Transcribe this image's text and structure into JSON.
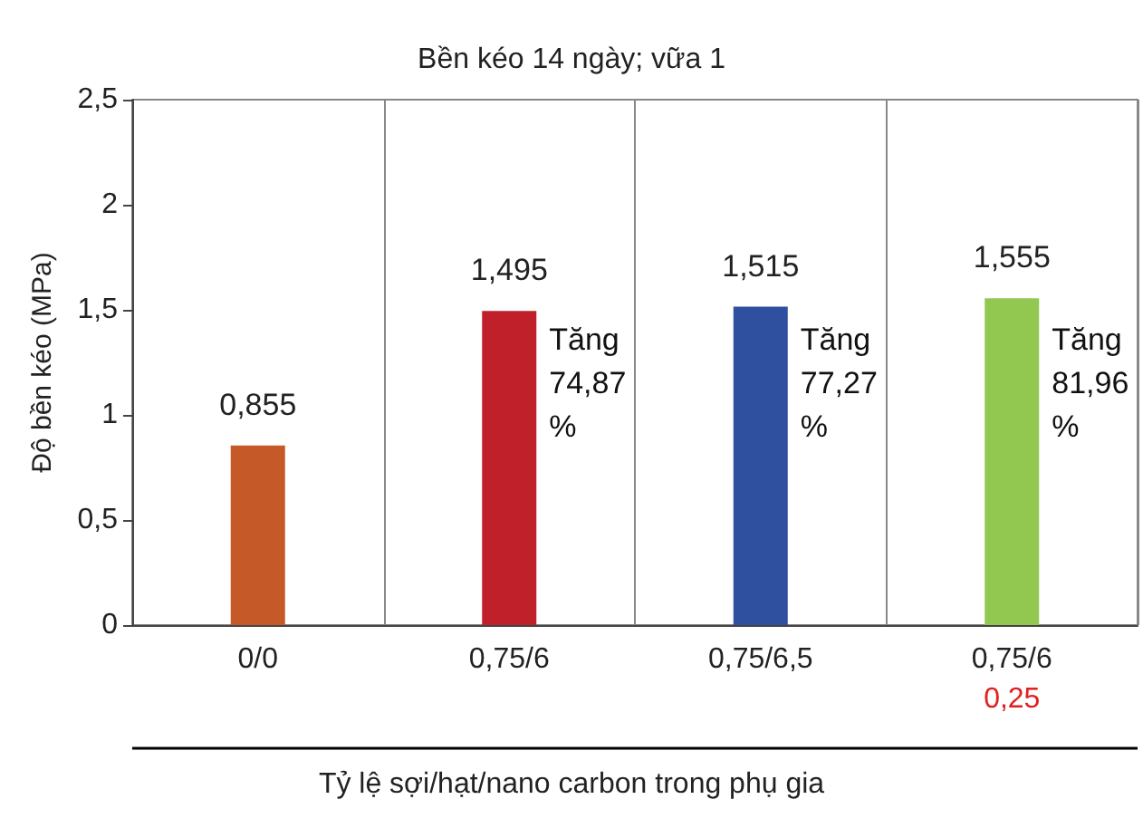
{
  "chart_data": {
    "type": "bar",
    "title": "Bền kéo 14 ngày; vữa 1",
    "xlabel": "Tỷ lệ sợi/hạt/nano carbon trong phụ gia",
    "ylabel": "Độ bền kéo (MPa)",
    "categories": [
      "0/0",
      "0,75/6",
      "0,75/6,5",
      "0,75/6\n0,25"
    ],
    "values": [
      0.855,
      1.495,
      1.515,
      1.555
    ],
    "colors": [
      "#c55a28",
      "#c0202a",
      "#2f4f9f",
      "#92c84f"
    ],
    "ylim": [
      0,
      2.5
    ],
    "yticks": [
      {
        "value": 0,
        "label": "0"
      },
      {
        "value": 0.5,
        "label": "0,5"
      },
      {
        "value": 1,
        "label": "1"
      },
      {
        "value": 1.5,
        "label": "1,5"
      },
      {
        "value": 2,
        "label": "2"
      },
      {
        "value": 2.5,
        "label": "2,5"
      }
    ],
    "grid": "x",
    "value_labels": [
      "0,855",
      "1,495",
      "1,515",
      "1,555"
    ],
    "annotations": [
      "Tăng\n74,87\n%",
      "Tăng\n77,27\n%",
      "Tăng\n81,96\n%"
    ]
  }
}
